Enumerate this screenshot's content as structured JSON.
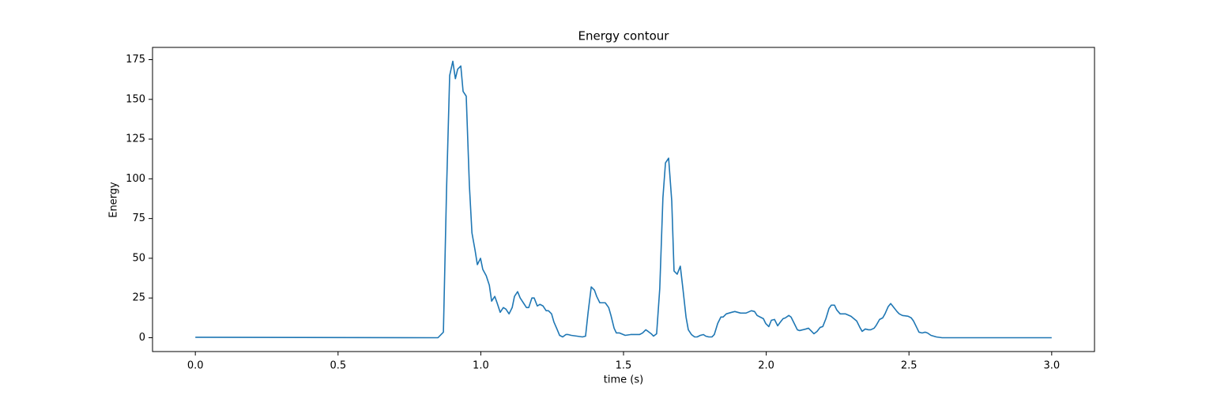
{
  "chart_data": {
    "type": "line",
    "title": "Energy contour",
    "xlabel": "time (s)",
    "ylabel": "Energy",
    "color": "#1f77b4",
    "x": [
      0,
      0.85,
      0.869,
      0.88,
      0.891,
      0.902,
      0.911,
      0.919,
      0.93,
      0.938,
      0.949,
      0.96,
      0.969,
      0.98,
      0.988,
      0.999,
      1.007,
      1.019,
      1.03,
      1.038,
      1.049,
      1.057,
      1.068,
      1.079,
      1.088,
      1.099,
      1.11,
      1.118,
      1.129,
      1.138,
      1.149,
      1.16,
      1.168,
      1.179,
      1.187,
      1.198,
      1.207,
      1.218,
      1.229,
      1.237,
      1.248,
      1.256,
      1.268,
      1.276,
      1.287,
      1.298,
      1.306,
      1.317,
      1.337,
      1.356,
      1.367,
      1.376,
      1.387,
      1.398,
      1.406,
      1.417,
      1.436,
      1.448,
      1.456,
      1.467,
      1.475,
      1.486,
      1.506,
      1.525,
      1.556,
      1.567,
      1.578,
      1.586,
      1.597,
      1.605,
      1.616,
      1.627,
      1.638,
      1.647,
      1.658,
      1.669,
      1.677,
      1.688,
      1.699,
      1.708,
      1.719,
      1.727,
      1.738,
      1.749,
      1.758,
      1.769,
      1.78,
      1.788,
      1.799,
      1.81,
      1.818,
      1.83,
      1.841,
      1.849,
      1.86,
      1.879,
      1.89,
      1.91,
      1.929,
      1.948,
      1.959,
      1.968,
      1.979,
      1.99,
      1.998,
      2.009,
      2.018,
      2.029,
      2.04,
      2.048,
      2.059,
      2.067,
      2.079,
      2.087,
      2.098,
      2.109,
      2.117,
      2.128,
      2.139,
      2.148,
      2.159,
      2.167,
      2.178,
      2.189,
      2.198,
      2.209,
      2.22,
      2.228,
      2.239,
      2.247,
      2.259,
      2.278,
      2.297,
      2.317,
      2.328,
      2.336,
      2.347,
      2.358,
      2.366,
      2.378,
      2.386,
      2.397,
      2.408,
      2.416,
      2.427,
      2.436,
      2.447,
      2.458,
      2.466,
      2.477,
      2.497,
      2.508,
      2.516,
      2.527,
      2.535,
      2.546,
      2.557,
      2.565,
      2.577,
      2.596,
      2.616,
      3.0
    ],
    "values": [
      0.3,
      0,
      3.5,
      93,
      165,
      174,
      163,
      169,
      171,
      155,
      152,
      96,
      66,
      55,
      46,
      50,
      43,
      39,
      33,
      23,
      26,
      22,
      16,
      19,
      18,
      15,
      19,
      26,
      29,
      25,
      22,
      19,
      19,
      25,
      25,
      20,
      21,
      20,
      17,
      17,
      15,
      10,
      5,
      1.5,
      0.5,
      2,
      2,
      1.5,
      1,
      0.5,
      1,
      16,
      32,
      30,
      26,
      22,
      22,
      19,
      14,
      6,
      3,
      3,
      1.5,
      2,
      2,
      3,
      5,
      4,
      2.5,
      1,
      2.5,
      31,
      88,
      110,
      113,
      86,
      42,
      40,
      45,
      31,
      13,
      5,
      2,
      0.5,
      0.5,
      1.5,
      2,
      1,
      0.5,
      0.5,
      2,
      9,
      13,
      13,
      15,
      16,
      16.5,
      15.5,
      15.5,
      17,
      16.5,
      14,
      13,
      12,
      9,
      7,
      11,
      11.5,
      7.5,
      9.5,
      12,
      12.5,
      14,
      13,
      9,
      5,
      4.5,
      5,
      5.5,
      6,
      4,
      2.5,
      4,
      6.5,
      7,
      12,
      18.5,
      20.5,
      20.5,
      17.5,
      15,
      15,
      13.5,
      10.5,
      6.5,
      4,
      5.5,
      5,
      5,
      6,
      8,
      11.5,
      12.5,
      15,
      19.5,
      21.5,
      19,
      16.5,
      15,
      14,
      13.5,
      12.5,
      10.5,
      6.5,
      3.5,
      3,
      3.5,
      3,
      1.5,
      0.5,
      0,
      0
    ],
    "xlim": [
      -0.15,
      3.15
    ],
    "xticks": [
      {
        "value": 0,
        "label": "0.0"
      },
      0.5,
      {
        "value": 1,
        "label": "1.0"
      },
      1.5,
      {
        "value": 2,
        "label": "2.0"
      },
      2.5,
      {
        "value": 3,
        "label": "3.0"
      }
    ],
    "ylim": [
      -8.7,
      182.7
    ],
    "yticks": [
      0,
      25,
      50,
      75,
      100,
      125,
      150,
      175
    ]
  }
}
